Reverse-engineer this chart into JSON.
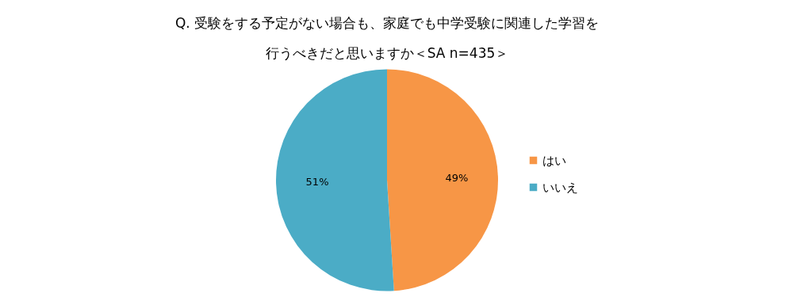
{
  "chart_data": {
    "type": "pie",
    "title": [
      "Q. 受験をする予定がない場合も、家庭でも中学受験に関連した学習を",
      "行うべきだと思いますか＜SA n=435＞"
    ],
    "categories": [
      "はい",
      "いいえ"
    ],
    "values": [
      49,
      51
    ],
    "colors": [
      "#f79646",
      "#4bacc6"
    ],
    "value_labels": [
      "49%",
      "51%"
    ],
    "legend": "right"
  }
}
